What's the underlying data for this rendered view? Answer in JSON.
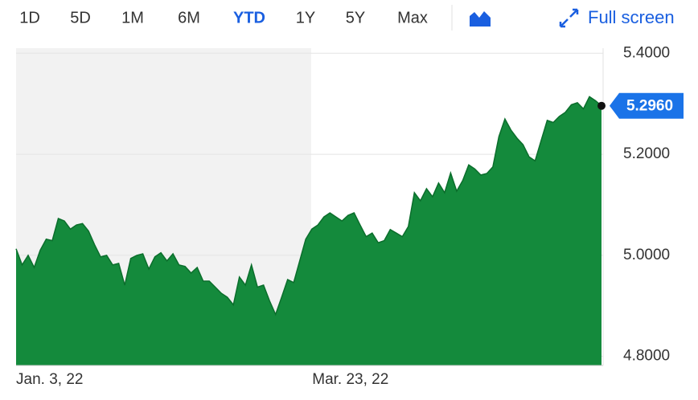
{
  "toolbar": {
    "ranges": [
      "1D",
      "5D",
      "1M",
      "6M",
      "YTD",
      "1Y",
      "5Y",
      "Max"
    ],
    "selected": 4,
    "full_screen": "Full screen"
  },
  "chart_data": {
    "type": "area",
    "color": "#148a3c",
    "line_color": "#0b6e2c",
    "categories": [
      "Jan. 3, 22",
      null,
      null,
      null,
      null,
      null,
      null,
      null,
      null,
      null,
      null,
      null,
      null,
      null,
      null,
      null,
      null,
      null,
      null,
      null,
      null,
      null,
      null,
      null,
      null,
      null,
      null,
      null,
      null,
      null,
      null,
      null,
      null,
      null,
      null,
      null,
      null,
      null,
      null,
      null,
      null,
      null,
      null,
      null,
      null,
      null,
      null,
      null,
      null,
      null,
      "Mar. 23, 22",
      null,
      null,
      null,
      null,
      null,
      null,
      null,
      null,
      null,
      null,
      null,
      null,
      null,
      null,
      null,
      null,
      null,
      null,
      null,
      null,
      null,
      null,
      null,
      null,
      null,
      null,
      null,
      null,
      null,
      null,
      null,
      null,
      null,
      null,
      null,
      null,
      null,
      null,
      null,
      null,
      null,
      null,
      null,
      null,
      null,
      null,
      null
    ],
    "values": [
      5.013,
      4.981,
      5.0,
      4.976,
      5.01,
      5.032,
      5.029,
      5.073,
      5.068,
      5.052,
      5.06,
      5.063,
      5.048,
      5.021,
      4.997,
      5.0,
      4.981,
      4.984,
      4.941,
      4.994,
      5.0,
      5.003,
      4.973,
      4.997,
      5.005,
      4.989,
      5.003,
      4.981,
      4.978,
      4.965,
      4.976,
      4.949,
      4.949,
      4.937,
      4.925,
      4.917,
      4.902,
      4.957,
      4.941,
      4.981,
      4.937,
      4.941,
      4.91,
      4.883,
      4.917,
      4.952,
      4.946,
      4.989,
      5.032,
      5.052,
      5.06,
      5.076,
      5.084,
      5.076,
      5.068,
      5.079,
      5.084,
      5.06,
      5.037,
      5.044,
      5.025,
      5.029,
      5.051,
      5.044,
      5.037,
      5.057,
      5.124,
      5.108,
      5.132,
      5.116,
      5.143,
      5.124,
      5.163,
      5.127,
      5.148,
      5.179,
      5.171,
      5.159,
      5.162,
      5.175,
      5.235,
      5.27,
      5.248,
      5.232,
      5.219,
      5.195,
      5.187,
      5.227,
      5.267,
      5.263,
      5.275,
      5.283,
      5.298,
      5.302,
      5.29,
      5.314,
      5.306,
      5.296
    ],
    "value_labels": [
      null,
      null,
      null,
      null,
      null,
      null,
      null,
      null,
      null,
      null,
      null,
      null,
      null,
      null,
      null,
      null,
      null,
      null,
      null,
      null,
      null,
      null,
      null,
      null,
      null,
      null,
      null,
      null,
      null,
      null,
      null,
      null,
      null,
      null,
      null,
      null,
      null,
      null,
      null,
      null,
      null,
      null,
      null,
      null,
      null,
      null,
      null,
      null,
      null,
      null,
      null,
      null,
      null,
      null,
      null,
      null,
      null,
      null,
      null,
      null,
      null,
      null,
      null,
      null,
      null,
      null,
      null,
      null,
      null,
      null,
      null,
      null,
      null,
      null,
      null,
      null,
      null,
      null,
      null,
      null,
      null,
      null,
      null,
      null,
      null,
      null,
      null,
      null,
      null,
      null,
      null,
      null,
      null,
      null,
      null,
      null,
      null,
      "5.2960"
    ],
    "ylim": [
      4.782,
      5.41
    ],
    "yticks": [
      {
        "value": 4.8,
        "label": "4.8000"
      },
      {
        "value": 5.0,
        "label": "5.0000"
      },
      {
        "value": 5.2,
        "label": "5.2000"
      },
      {
        "value": 5.4,
        "label": "5.4000"
      }
    ],
    "grid": true
  }
}
